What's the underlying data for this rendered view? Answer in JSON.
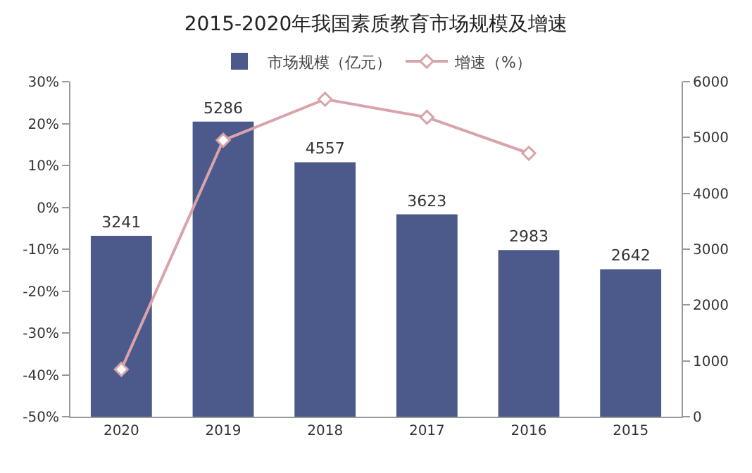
{
  "chart_data": {
    "type": "bar",
    "title": "2015-2020年我国素质教育市场规模及增速",
    "categories": [
      "2020",
      "2019",
      "2018",
      "2017",
      "2016",
      "2015"
    ],
    "series": [
      {
        "name": "增速（%）",
        "type": "line",
        "color": "#d9a3ab",
        "marker": "diamond",
        "values": [
          -38.7,
          16.0,
          25.8,
          21.5,
          12.9,
          null
        ]
      },
      {
        "name": "市场规模（亿元）",
        "axis": "y2",
        "color": "#4b5a8a",
        "values": [
          3241,
          5286,
          4557,
          3623,
          2983,
          2642
        ],
        "value_labels": [
          "3241",
          "5286",
          "4557",
          "3623",
          "2983",
          "2642"
        ]
      }
    ],
    "ylim": [
      -50,
      30
    ],
    "yticks": [
      {
        "value": 30,
        "label": "30%"
      },
      {
        "value": 20,
        "label": "20%"
      },
      {
        "value": 10,
        "label": "10%"
      },
      {
        "value": 0,
        "label": "0%"
      },
      {
        "value": -10,
        "label": "-10%"
      },
      {
        "value": -20,
        "label": "-20%"
      },
      {
        "value": -30,
        "label": "-30%"
      },
      {
        "value": -40,
        "label": "-40%"
      },
      {
        "value": -50,
        "label": "-50%"
      }
    ],
    "y2lim": [
      0,
      6000
    ],
    "y2ticks": [
      0,
      1000,
      2000,
      3000,
      4000,
      5000,
      6000
    ],
    "legend": "top",
    "grid": false
  }
}
